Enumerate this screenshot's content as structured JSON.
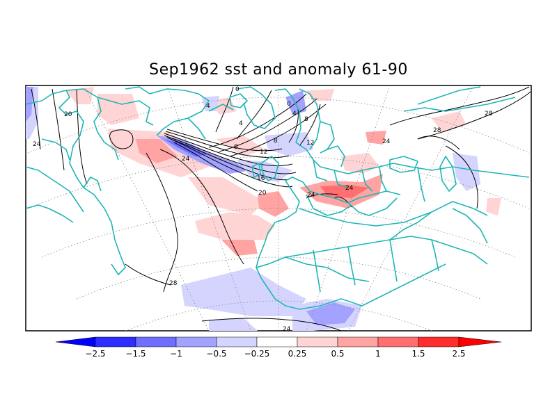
{
  "title": "Sep1962 sst and anomaly 61-90",
  "colors": {
    "coastline": "#1fb5b5",
    "contour": "#000000",
    "anomaly_levels": [
      "#0000ff",
      "#2d2dff",
      "#6f6fff",
      "#a3a3ff",
      "#d4d4ff",
      "#ffffff",
      "#ffd4d4",
      "#ffa3a3",
      "#ff6f6f",
      "#ff2d2d",
      "#ff0000"
    ]
  },
  "colorbar": {
    "ticks": [
      "−2.5",
      "−1.5",
      "−1",
      "−0.5",
      "−0.25",
      "0.25",
      "0.5",
      "1",
      "1.5",
      "2.5"
    ]
  },
  "contour_labels": [
    "20",
    "24",
    "0",
    "4",
    "4",
    "0",
    "4",
    "8",
    "8",
    "8",
    "12",
    "12",
    "16",
    "20",
    "24",
    "24",
    "24",
    "24",
    "28",
    "28",
    "28",
    "24"
  ]
}
